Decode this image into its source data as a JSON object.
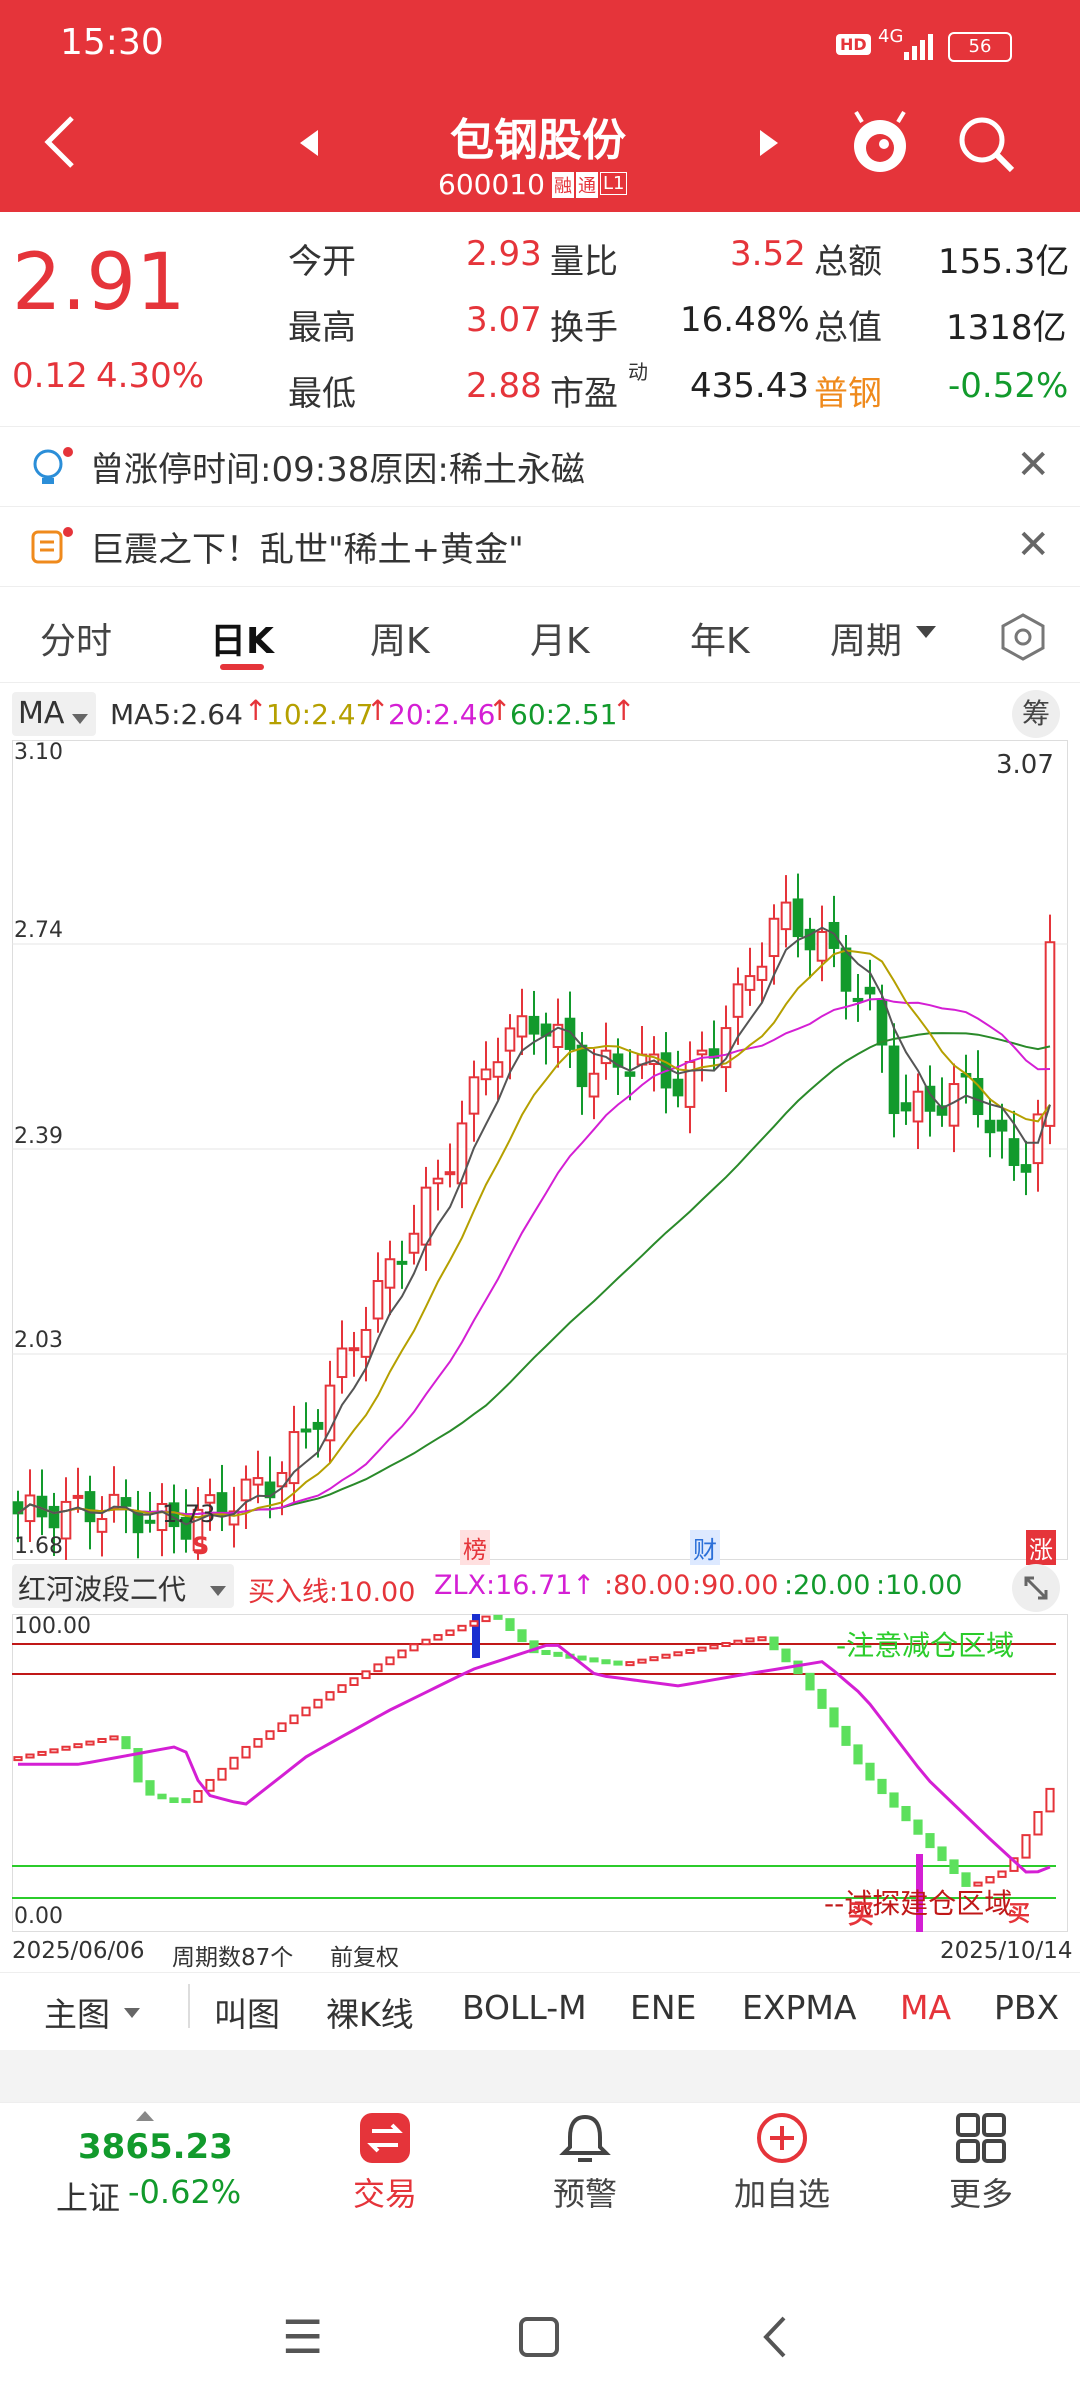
{
  "status_bar": {
    "time": "15:30",
    "hd": "HD",
    "network": "4G",
    "battery": "56"
  },
  "header": {
    "stock_name": "包钢股份",
    "stock_code": "600010",
    "badges": [
      "融",
      "通",
      "L1"
    ]
  },
  "quote": {
    "price": "2.91",
    "change": "0.12",
    "change_pct": "4.30%",
    "rows": [
      [
        {
          "label": "今开",
          "value": "2.93",
          "color": "red"
        },
        {
          "label": "量比",
          "value": "3.52",
          "color": "red"
        },
        {
          "label": "总额",
          "value": "155.3亿",
          "color": "dark"
        }
      ],
      [
        {
          "label": "最高",
          "value": "3.07",
          "color": "red"
        },
        {
          "label": "换手",
          "value": "16.48%",
          "color": "dark"
        },
        {
          "label": "总值",
          "value": "1318亿",
          "color": "dark"
        }
      ],
      [
        {
          "label": "最低",
          "value": "2.88",
          "color": "red"
        },
        {
          "label": "市盈",
          "value": "435.43",
          "color": "dark"
        },
        {
          "label": "普钢",
          "value": "-0.52%",
          "color": "green"
        }
      ]
    ],
    "pe_superscript": "动"
  },
  "notices": [
    {
      "text": "曾涨停时间:09:38原因:稀土永磁"
    },
    {
      "text": "巨震之下！乱世\"稀土+黄金\""
    }
  ],
  "tabs": [
    "分时",
    "日K",
    "周K",
    "月K",
    "年K",
    "周期"
  ],
  "active_tab": "日K",
  "ma_bar": {
    "selector": "MA",
    "ma5": "MA5:2.64",
    "ma10": "10:2.47",
    "ma20": "20:2.46",
    "ma60": "60:2.51",
    "chip": "筹"
  },
  "kline": {
    "y_labels": [
      "3.10",
      "2.74",
      "2.39",
      "2.03",
      "1.68"
    ],
    "high_label": "3.07",
    "low_label": "1.73",
    "markers": [
      "S",
      "榜",
      "财",
      "涨"
    ]
  },
  "indicator": {
    "name": "红河波段二代",
    "params": [
      {
        "text": "买入线:10.00",
        "color": "#e5343a"
      },
      {
        "text": "ZLX:16.71↑",
        "color": "#d41fd4"
      },
      {
        "text": ":80.00",
        "color": "#e5343a"
      },
      {
        "text": ":90.00",
        "color": "#e5343a"
      },
      {
        "text": ":20.00",
        "color": "#129a2c"
      },
      {
        "text": ":10.00",
        "color": "#129a2c"
      }
    ],
    "y_top": "100.00",
    "y_bottom": "0.00",
    "note_top": "-注意减仓区域",
    "note_bottom": "--试探建仓区域",
    "buy_mark": "买"
  },
  "date_bar": {
    "start": "2025/06/06",
    "period": "周期数87个",
    "adjust": "前复权",
    "end": "2025/10/14"
  },
  "indicator_tabs": [
    "主图",
    "叫图",
    "裸K线",
    "BOLL-M",
    "ENE",
    "EXPMA",
    "MA",
    "PBX"
  ],
  "bottom_nav": {
    "index_value": "3865.23",
    "index_name": "上证",
    "index_change": "-0.62%",
    "items": [
      "交易",
      "预警",
      "加自选",
      "更多"
    ]
  },
  "colors": {
    "brand_red": "#e5343a",
    "up": "#e5343a",
    "down": "#129a2c"
  }
}
